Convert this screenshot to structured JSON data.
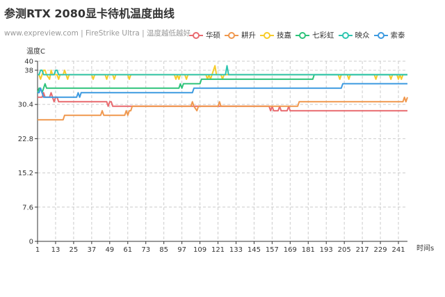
{
  "header": {
    "title": "参测RTX 2080显卡待机温度曲线",
    "subtitle": "www.expreview.com | FireStrike Ultra | 温度越低越好"
  },
  "chart_data": {
    "type": "line",
    "title": "参测RTX 2080显卡待机温度曲线",
    "subtitle": "www.expreview.com | FireStrike Ultra | 温度越低越好",
    "ylabel": "温度C",
    "xlabel": "时间s",
    "ylim": [
      0,
      40
    ],
    "xlim": [
      1,
      247
    ],
    "yticks": [
      0,
      7.6,
      15.2,
      22.8,
      30.4,
      38,
      40
    ],
    "ytick_labels": [
      "0",
      "7.6",
      "15.2",
      "22.8",
      "30.4",
      "38",
      "40"
    ],
    "xticks": [
      1,
      13,
      25,
      37,
      49,
      61,
      73,
      85,
      97,
      109,
      121,
      133,
      145,
      157,
      169,
      181,
      193,
      205,
      217,
      229,
      241
    ],
    "grid": true,
    "legend_position": "top-right",
    "series": [
      {
        "name": "华硕",
        "color": "#e86a6f",
        "points": [
          [
            1,
            32
          ],
          [
            4,
            32
          ],
          [
            5,
            33
          ],
          [
            6,
            32
          ],
          [
            9,
            32
          ],
          [
            10,
            33
          ],
          [
            11,
            32
          ],
          [
            12,
            31
          ],
          [
            13,
            32
          ],
          [
            14,
            32
          ],
          [
            15,
            31
          ],
          [
            47,
            31
          ],
          [
            48,
            30
          ],
          [
            49,
            31
          ],
          [
            50,
            31
          ],
          [
            51,
            30
          ],
          [
            155,
            30
          ],
          [
            156,
            29
          ],
          [
            157,
            30
          ],
          [
            158,
            29
          ],
          [
            161,
            29
          ],
          [
            162,
            30
          ],
          [
            163,
            29
          ],
          [
            167,
            29
          ],
          [
            168,
            30
          ],
          [
            169,
            29
          ],
          [
            247,
            29
          ]
        ]
      },
      {
        "name": "耕升",
        "color": "#f0984e",
        "points": [
          [
            1,
            27
          ],
          [
            18,
            27
          ],
          [
            19,
            28
          ],
          [
            43,
            28
          ],
          [
            44,
            29
          ],
          [
            45,
            28
          ],
          [
            59,
            28
          ],
          [
            60,
            29
          ],
          [
            61,
            28
          ],
          [
            62,
            29
          ],
          [
            63,
            29
          ],
          [
            64,
            30
          ],
          [
            103,
            30
          ],
          [
            104,
            31
          ],
          [
            105,
            30
          ],
          [
            107,
            29
          ],
          [
            108,
            30
          ],
          [
            121,
            30
          ],
          [
            122,
            31
          ],
          [
            123,
            30
          ],
          [
            174,
            30
          ],
          [
            175,
            31
          ],
          [
            244,
            31
          ],
          [
            245,
            32
          ],
          [
            246,
            31
          ],
          [
            247,
            32
          ]
        ]
      },
      {
        "name": "技嘉",
        "color": "#f7cc2a",
        "points": [
          [
            1,
            37
          ],
          [
            2,
            37
          ],
          [
            3,
            36
          ],
          [
            4,
            37
          ],
          [
            5,
            38
          ],
          [
            6,
            38
          ],
          [
            7,
            37
          ],
          [
            9,
            36
          ],
          [
            10,
            38
          ],
          [
            11,
            37
          ],
          [
            14,
            37
          ],
          [
            15,
            36
          ],
          [
            16,
            37
          ],
          [
            18,
            37
          ],
          [
            19,
            38
          ],
          [
            20,
            37
          ],
          [
            21,
            36
          ],
          [
            22,
            37
          ],
          [
            37,
            37
          ],
          [
            38,
            36
          ],
          [
            39,
            37
          ],
          [
            46,
            37
          ],
          [
            47,
            36
          ],
          [
            48,
            37
          ],
          [
            51,
            37
          ],
          [
            52,
            36
          ],
          [
            53,
            37
          ],
          [
            61,
            37
          ],
          [
            62,
            36
          ],
          [
            63,
            37
          ],
          [
            92,
            37
          ],
          [
            93,
            36
          ],
          [
            94,
            37
          ],
          [
            95,
            36
          ],
          [
            96,
            37
          ],
          [
            99,
            37
          ],
          [
            100,
            36
          ],
          [
            101,
            37
          ],
          [
            113,
            37
          ],
          [
            114,
            36
          ],
          [
            115,
            37
          ],
          [
            116,
            36
          ],
          [
            117,
            37
          ],
          [
            118,
            38
          ],
          [
            119,
            39
          ],
          [
            120,
            37
          ],
          [
            123,
            37
          ],
          [
            124,
            36
          ],
          [
            125,
            37
          ],
          [
            201,
            37
          ],
          [
            202,
            36
          ],
          [
            203,
            37
          ],
          [
            207,
            37
          ],
          [
            208,
            36
          ],
          [
            209,
            37
          ],
          [
            225,
            37
          ],
          [
            226,
            36
          ],
          [
            227,
            37
          ],
          [
            235,
            37
          ],
          [
            236,
            36
          ],
          [
            237,
            37
          ],
          [
            240,
            37
          ],
          [
            241,
            36
          ],
          [
            242,
            37
          ],
          [
            243,
            36
          ],
          [
            244,
            37
          ],
          [
            247,
            37
          ]
        ]
      },
      {
        "name": "七彩虹",
        "color": "#2ec37a",
        "points": [
          [
            1,
            33
          ],
          [
            2,
            34
          ],
          [
            3,
            34
          ],
          [
            4,
            33
          ],
          [
            5,
            34
          ],
          [
            6,
            35
          ],
          [
            7,
            34
          ],
          [
            24,
            34
          ],
          [
            25,
            34
          ],
          [
            95,
            34
          ],
          [
            96,
            35
          ],
          [
            97,
            34
          ],
          [
            98,
            35
          ],
          [
            108,
            35
          ],
          [
            109,
            35
          ],
          [
            110,
            36
          ],
          [
            183,
            36
          ],
          [
            184,
            36
          ],
          [
            185,
            37
          ],
          [
            247,
            37
          ]
        ]
      },
      {
        "name": "映众",
        "color": "#2ec5b0",
        "points": [
          [
            1,
            37
          ],
          [
            2,
            37
          ],
          [
            3,
            38
          ],
          [
            4,
            38
          ],
          [
            5,
            37
          ],
          [
            12,
            37
          ],
          [
            13,
            38
          ],
          [
            14,
            38
          ],
          [
            15,
            37
          ],
          [
            126,
            37
          ],
          [
            127,
            39
          ],
          [
            128,
            37
          ],
          [
            247,
            37
          ]
        ]
      },
      {
        "name": "索泰",
        "color": "#3d9ae0",
        "points": [
          [
            1,
            33
          ],
          [
            2,
            33
          ],
          [
            3,
            34
          ],
          [
            4,
            33
          ],
          [
            5,
            32
          ],
          [
            27,
            32
          ],
          [
            28,
            33
          ],
          [
            29,
            32
          ],
          [
            30,
            33
          ],
          [
            104,
            33
          ],
          [
            105,
            34
          ],
          [
            203,
            34
          ],
          [
            204,
            35
          ],
          [
            247,
            35
          ]
        ]
      }
    ]
  }
}
